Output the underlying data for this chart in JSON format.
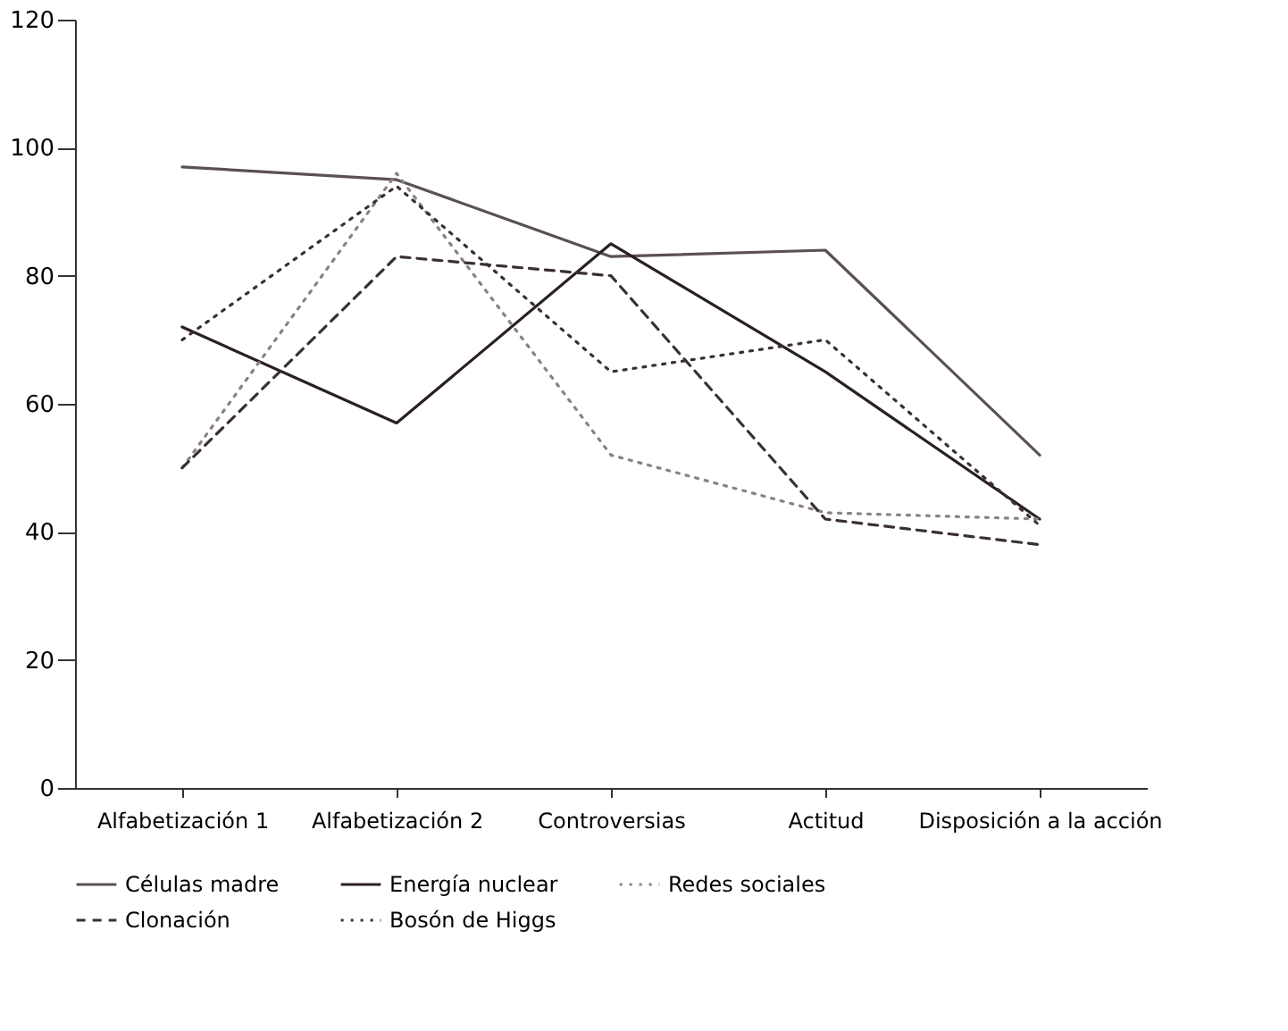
{
  "chart_data": {
    "type": "line",
    "categories": [
      "Alfabetización 1",
      "Alfabetización 2",
      "Controversias",
      "Actitud",
      "Disposición a la acción"
    ],
    "series": [
      {
        "name": "Células madre",
        "color": "#5a5055",
        "line_style": "solid",
        "values": [
          97,
          95,
          83,
          84,
          52
        ]
      },
      {
        "name": "Energía nuclear",
        "color": "#2a1f24",
        "line_style": "solid",
        "values": [
          72,
          57,
          85,
          65,
          42
        ]
      },
      {
        "name": "Redes sociales",
        "color": "#8a8085",
        "line_style": "dotted",
        "values": [
          50,
          96,
          52,
          43,
          42
        ]
      },
      {
        "name": "Clonación",
        "color": "#3a3034",
        "line_style": "dashed",
        "values": [
          50,
          83,
          80,
          42,
          38
        ]
      },
      {
        "name": "Bosón de Higgs",
        "color": "#3a3034",
        "line_style": "dotted",
        "values": [
          70,
          94,
          65,
          70,
          41
        ]
      }
    ],
    "ylim": [
      0,
      120
    ],
    "yticks": [
      0,
      20,
      40,
      60,
      80,
      100,
      120
    ],
    "grid": false,
    "legend": "bottom",
    "marker": "none"
  }
}
